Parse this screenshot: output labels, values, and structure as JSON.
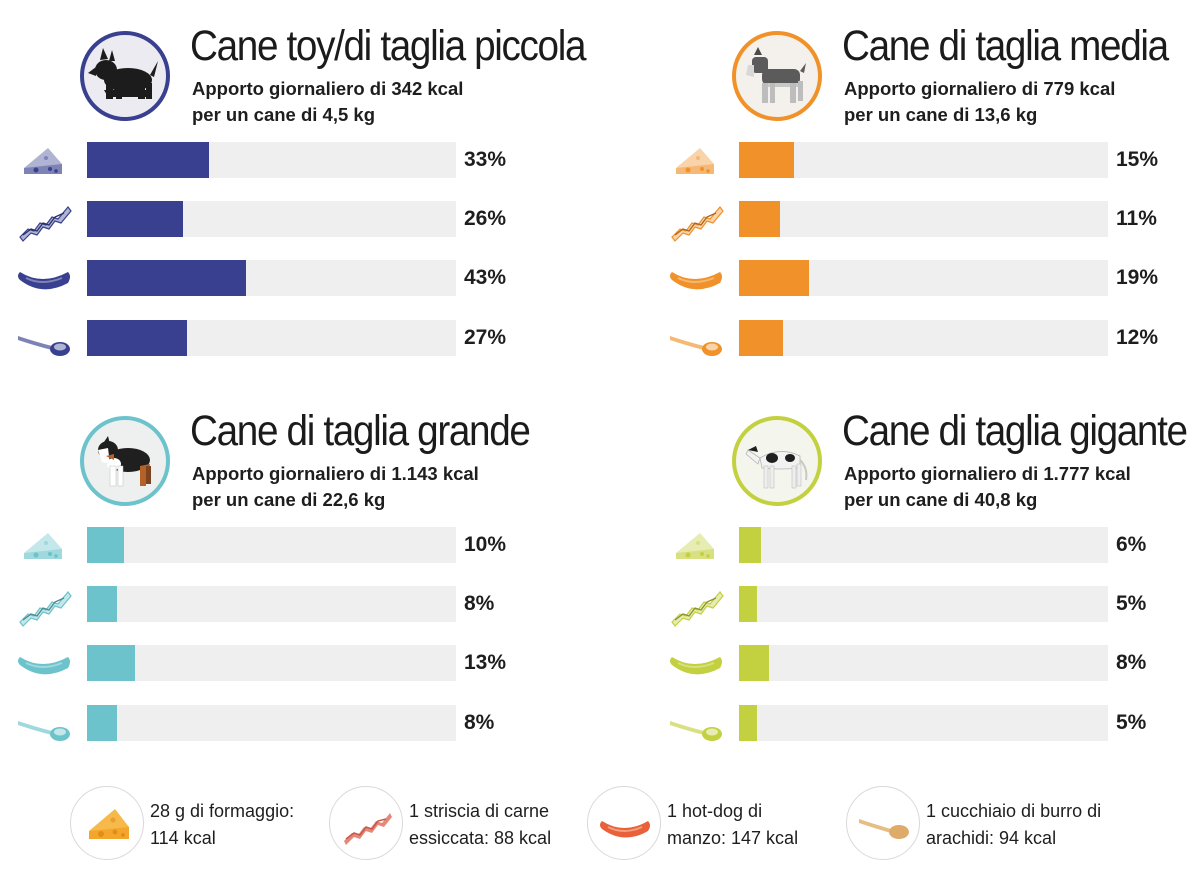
{
  "food_icons": [
    "cheese-icon",
    "jerky-icon",
    "hotdog-icon",
    "spoon-icon"
  ],
  "chart_data": [
    {
      "type": "bar",
      "title": "Cane toy/di taglia piccola",
      "subtitle_line1": "Apporto giornaliero di 342 kcal",
      "subtitle_line2": "per un cane di 4,5 kg",
      "dog_icon": "scottish-terrier-icon",
      "color": "#39408f",
      "values": [
        33,
        26,
        43,
        27
      ],
      "labels": [
        "33%",
        "26%",
        "43%",
        "27%"
      ],
      "ylim": [
        0,
        100
      ]
    },
    {
      "type": "bar",
      "title": "Cane di taglia media",
      "subtitle_line1": "Apporto giornaliero di 779 kcal",
      "subtitle_line2": "per un cane di 13,6 kg",
      "dog_icon": "schnauzer-icon",
      "color": "#f0912a",
      "values": [
        15,
        11,
        19,
        12
      ],
      "labels": [
        "15%",
        "11%",
        "19%",
        "12%"
      ],
      "ylim": [
        0,
        100
      ]
    },
    {
      "type": "bar",
      "title": "Cane di taglia grande",
      "subtitle_line1": "Apporto giornaliero di 1.143 kcal",
      "subtitle_line2": "per un cane di 22,6 kg",
      "dog_icon": "australian-shepherd-icon",
      "color": "#6cc3cb",
      "values": [
        10,
        8,
        13,
        8
      ],
      "labels": [
        "10%",
        "8%",
        "13%",
        "8%"
      ],
      "ylim": [
        0,
        100
      ]
    },
    {
      "type": "bar",
      "title": "Cane di taglia gigante",
      "subtitle_line1": "Apporto giornaliero di 1.777 kcal",
      "subtitle_line2": "per un cane di 40,8 kg",
      "dog_icon": "borzoi-icon",
      "color": "#c3d03f",
      "values": [
        6,
        5,
        8,
        5
      ],
      "labels": [
        "6%",
        "5%",
        "8%",
        "5%"
      ],
      "ylim": [
        0,
        100
      ]
    }
  ],
  "legend": [
    {
      "icon": "cheese-icon",
      "line1": "28 g di formaggio:",
      "line2": "114 kcal"
    },
    {
      "icon": "jerky-icon",
      "line1": "1 striscia di carne",
      "line2": "essiccata: 88 kcal"
    },
    {
      "icon": "hotdog-icon",
      "line1": "1 hot-dog di",
      "line2": "manzo: 147 kcal"
    },
    {
      "icon": "spoon-icon",
      "line1": "1 cucchiaio di burro di",
      "line2": "arachidi: 94 kcal"
    }
  ]
}
